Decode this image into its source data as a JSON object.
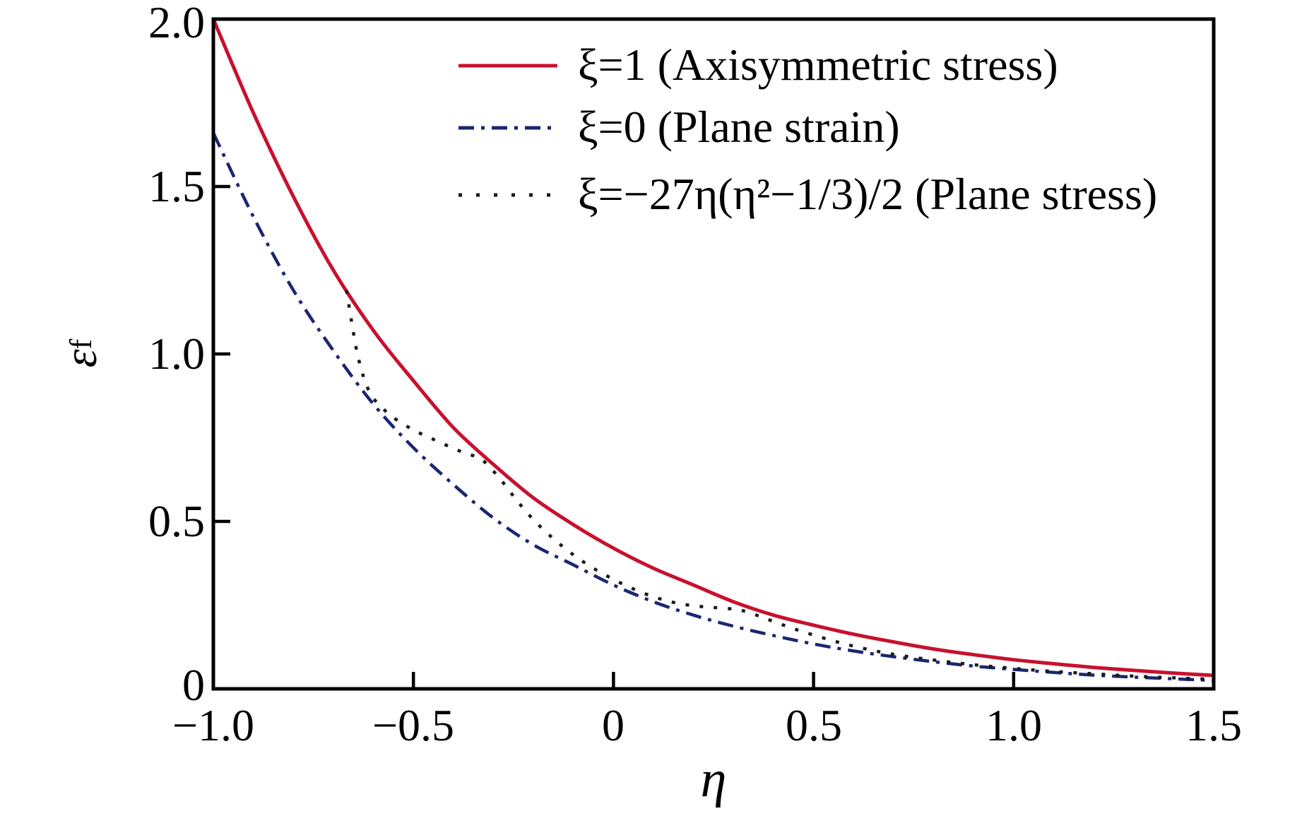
{
  "figure": {
    "background": "#ffffff",
    "frame_color": "#000000"
  },
  "legend": {
    "items": [
      {
        "label": "ξ=1 (Axisymmetric stress)"
      },
      {
        "label": "ξ=0 (Plane strain)"
      },
      {
        "label": "ξ=−27η(η²−1/3)/2 (Plane stress)"
      }
    ]
  },
  "axes": {
    "x": {
      "label": "η",
      "ticks": [
        {
          "label": "−1.0",
          "value": -1.0,
          "mark": false
        },
        {
          "label": "−0.5",
          "value": -0.5,
          "mark": true
        },
        {
          "label": "0",
          "value": 0.0,
          "mark": true
        },
        {
          "label": "0.5",
          "value": 0.5,
          "mark": true
        },
        {
          "label": "1.0",
          "value": 1.0,
          "mark": true
        },
        {
          "label": "1.5",
          "value": 1.5,
          "mark": false
        }
      ]
    },
    "y": {
      "label_main": "ε",
      "label_sub": "f",
      "ticks": [
        {
          "label": "0",
          "value": 0.0,
          "mark": false
        },
        {
          "label": "0.5",
          "value": 0.5,
          "mark": true
        },
        {
          "label": "1.0",
          "value": 1.0,
          "mark": true
        },
        {
          "label": "1.5",
          "value": 1.5,
          "mark": true
        },
        {
          "label": "2.0",
          "value": 2.0,
          "mark": false
        }
      ]
    }
  },
  "chart_data": {
    "type": "line",
    "title": "",
    "xlabel": "η",
    "ylabel": "εf",
    "xlim": [
      -1.0,
      1.5
    ],
    "ylim": [
      0,
      2.0
    ],
    "grid": false,
    "legend_position": "upper right inside",
    "series": [
      {
        "name": "ξ=1 (Axisymmetric stress)",
        "color": "#c8102e",
        "line_style": "solid",
        "width": 5,
        "x": [
          -1.0,
          -0.9,
          -0.8,
          -0.7,
          -0.6,
          -0.5,
          -0.4,
          -0.3,
          -0.2,
          -0.1,
          0.0,
          0.1,
          0.2,
          0.3,
          0.4,
          0.5,
          0.6,
          0.7,
          0.8,
          0.9,
          1.0,
          1.1,
          1.2,
          1.3,
          1.4,
          1.5
        ],
        "y": [
          2.0,
          1.72,
          1.47,
          1.25,
          1.07,
          0.92,
          0.78,
          0.67,
          0.57,
          0.49,
          0.42,
          0.36,
          0.31,
          0.26,
          0.22,
          0.19,
          0.163,
          0.14,
          0.119,
          0.102,
          0.087,
          0.075,
          0.064,
          0.055,
          0.047,
          0.04
        ]
      },
      {
        "name": "ξ=0 (Plane strain)",
        "color": "#1b2672",
        "line_style": "dashdot",
        "width": 4.5,
        "x": [
          -1.0,
          -0.9,
          -0.8,
          -0.7,
          -0.6,
          -0.5,
          -0.4,
          -0.3,
          -0.2,
          -0.1,
          0.0,
          0.1,
          0.2,
          0.3,
          0.4,
          0.5,
          0.6,
          0.7,
          0.8,
          0.9,
          1.0,
          1.1,
          1.2,
          1.3,
          1.4,
          1.5
        ],
        "y": [
          1.66,
          1.41,
          1.19,
          1.01,
          0.85,
          0.72,
          0.61,
          0.51,
          0.43,
          0.37,
          0.31,
          0.26,
          0.22,
          0.187,
          0.159,
          0.134,
          0.113,
          0.096,
          0.081,
          0.068,
          0.058,
          0.049,
          0.041,
          0.035,
          0.03,
          0.025
        ]
      },
      {
        "name": "ξ=−27η(η²−1/3)/2 (Plane stress)",
        "color": "#1a1a1a",
        "line_style": "dotted",
        "width": 4.5,
        "x": [
          -0.667,
          -0.655,
          -0.64,
          -0.62,
          -0.6,
          -0.577,
          -0.55,
          -0.5,
          -0.45,
          -0.4,
          -0.367,
          -0.333,
          -0.3,
          -0.27,
          -0.24,
          -0.2,
          -0.15,
          -0.1,
          -0.05,
          0.0,
          0.05,
          0.1,
          0.15,
          0.2,
          0.25,
          0.3,
          0.333,
          0.38,
          0.43,
          0.48,
          0.55,
          0.62,
          0.7,
          0.8,
          0.9,
          1.0,
          1.1,
          1.2,
          1.3,
          1.4,
          1.5
        ],
        "y": [
          1.19,
          1.1,
          1.0,
          0.915,
          0.868,
          0.838,
          0.81,
          0.773,
          0.745,
          0.718,
          0.702,
          0.688,
          0.65,
          0.607,
          0.56,
          0.505,
          0.448,
          0.4,
          0.36,
          0.327,
          0.298,
          0.275,
          0.258,
          0.248,
          0.243,
          0.238,
          0.23,
          0.21,
          0.188,
          0.168,
          0.143,
          0.122,
          0.103,
          0.086,
          0.072,
          0.061,
          0.052,
          0.045,
          0.038,
          0.033,
          0.028
        ]
      }
    ]
  }
}
